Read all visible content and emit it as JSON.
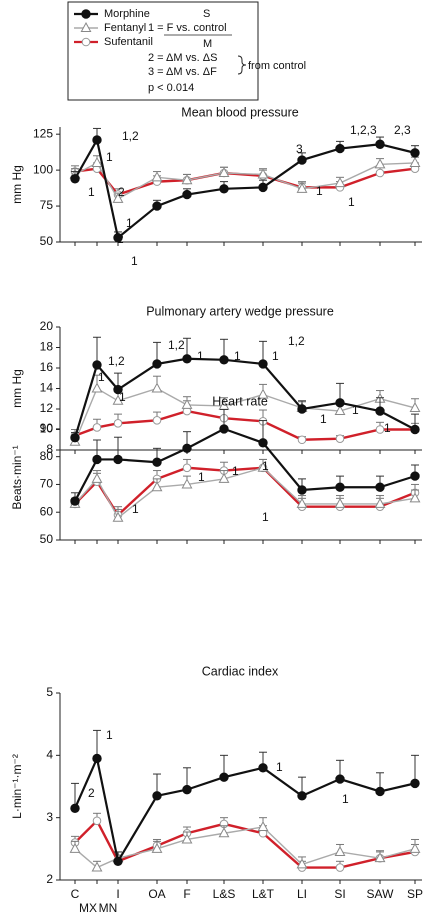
{
  "key": {
    "lines": [
      "S",
      "1 = F vs. control",
      "M",
      "2 = ΔM vs. ΔS",
      "3 = ΔM vs. ΔF",
      "from control",
      "p < 0.014"
    ]
  },
  "chart_data": [
    {
      "type": "line",
      "title": "Mean blood pressure",
      "ylabel": "mm Hg",
      "ylim": [
        50,
        130
      ],
      "yticks": [
        50,
        75,
        100,
        125
      ],
      "series": [
        {
          "name": "Morphine",
          "color": "#111111",
          "marker": "filled-circle",
          "values": [
            94,
            121,
            53,
            75,
            83,
            87,
            88,
            107,
            115,
            118,
            112
          ],
          "errors": [
            5,
            8,
            4,
            4,
            4,
            5,
            5,
            5,
            5,
            5,
            5
          ]
        },
        {
          "name": "Fentanyl",
          "color": "#aaaaaa",
          "marker": "open-triangle",
          "values": [
            97,
            105,
            80,
            95,
            93,
            98,
            97,
            87,
            91,
            104,
            105
          ],
          "errors": [
            4,
            5,
            4,
            4,
            4,
            4,
            4,
            4,
            4,
            4,
            4
          ]
        },
        {
          "name": "Sufentanil",
          "color": "#d0202a",
          "marker": "open-circle",
          "values": [
            99,
            101,
            83,
            92,
            93,
            98,
            96,
            88,
            88,
            98,
            101
          ],
          "errors": [
            4,
            4,
            4,
            4,
            4,
            4,
            4,
            4,
            4,
            4,
            4
          ]
        }
      ],
      "annotations": [
        "1,2",
        "1",
        "1",
        "2",
        "2",
        "1",
        "1",
        "3",
        "1,2,3",
        "2,3",
        "1",
        "1"
      ]
    },
    {
      "type": "line",
      "title": "Pulmonary artery wedge pressure",
      "ylabel": "mm Hg",
      "ylim": [
        8,
        20
      ],
      "yticks": [
        8,
        10,
        12,
        14,
        16,
        18,
        20
      ],
      "series": [
        {
          "name": "Morphine",
          "color": "#111111",
          "marker": "filled-circle",
          "values": [
            9.2,
            16.3,
            13.9,
            16.4,
            16.9,
            16.8,
            16.4,
            12.0,
            12.6,
            11.8,
            10.0
          ],
          "errors": [
            0.5,
            2.7,
            1.6,
            2.1,
            2.0,
            2.0,
            2.2,
            0.8,
            1.9,
            1.3,
            1.5
          ]
        },
        {
          "name": "Fentanyl",
          "color": "#aaaaaa",
          "marker": "open-triangle",
          "values": [
            8.8,
            14.0,
            12.8,
            14.0,
            12.4,
            12.3,
            13.4,
            12.1,
            11.8,
            13.0,
            12.1
          ],
          "errors": [
            0.5,
            1.3,
            1.0,
            1.2,
            0.8,
            0.8,
            1.0,
            0.6,
            0.6,
            0.8,
            0.9
          ]
        },
        {
          "name": "Sufentanil",
          "color": "#d0202a",
          "marker": "open-circle",
          "values": [
            9.4,
            10.2,
            10.6,
            10.9,
            11.8,
            11.1,
            10.8,
            9.0,
            9.1,
            10.0,
            10.0
          ],
          "errors": [
            0.6,
            0.8,
            0.9,
            0.8,
            1.0,
            0.9,
            1.1,
            0.3,
            0.3,
            0.7,
            0.6
          ]
        }
      ],
      "annotations": [
        "1,2",
        "1",
        "1",
        "1,2",
        "1",
        "1",
        "1",
        "1,2",
        "1",
        "1",
        "1"
      ]
    },
    {
      "type": "line",
      "title": "Heart rate",
      "ylabel": "Beats·min⁻¹",
      "ylim": [
        50,
        95
      ],
      "yticks": [
        50,
        60,
        70,
        80,
        90
      ],
      "series": [
        {
          "name": "Morphine",
          "color": "#111111",
          "marker": "filled-circle",
          "values": [
            64,
            79,
            79,
            78,
            83,
            90,
            85,
            68,
            69,
            69,
            73
          ],
          "errors": [
            3,
            7,
            8,
            5,
            6,
            7,
            8,
            4,
            4,
            4,
            4
          ]
        },
        {
          "name": "Fentanyl",
          "color": "#aaaaaa",
          "marker": "open-triangle",
          "values": [
            63,
            72,
            58,
            69,
            70,
            72,
            76,
            63,
            63,
            63,
            65
          ],
          "errors": [
            2,
            3,
            3,
            3,
            3,
            3,
            3,
            3,
            3,
            3,
            3
          ]
        },
        {
          "name": "Sufentanil",
          "color": "#d0202a",
          "marker": "open-circle",
          "values": [
            63,
            71,
            59,
            72,
            76,
            75,
            76,
            62,
            62,
            62,
            67
          ],
          "errors": [
            2,
            3,
            3,
            3,
            3,
            3,
            3,
            3,
            3,
            3,
            3
          ]
        }
      ],
      "annotations": [
        "1",
        "1",
        "1",
        "1",
        "1"
      ]
    },
    {
      "type": "line",
      "title": "Cardiac index",
      "ylabel": "L·min⁻¹·m⁻²",
      "ylim": [
        2,
        5
      ],
      "yticks": [
        2,
        3,
        4,
        5
      ],
      "categories": [
        "C",
        null,
        "I",
        "OA",
        "F",
        "L&S",
        "L&T",
        "LI",
        "SI",
        "SAW",
        "SP"
      ],
      "x_sublabels": [
        "MX",
        "MN"
      ],
      "series": [
        {
          "name": "Morphine",
          "color": "#111111",
          "marker": "filled-circle",
          "values": [
            3.15,
            3.95,
            2.3,
            3.35,
            3.45,
            3.65,
            3.8,
            3.35,
            3.62,
            3.42,
            3.55
          ],
          "errors": [
            0.4,
            0.45,
            0.15,
            0.35,
            0.35,
            0.35,
            0.25,
            0.3,
            0.3,
            0.3,
            0.45
          ]
        },
        {
          "name": "Fentanyl",
          "color": "#aaaaaa",
          "marker": "open-triangle",
          "values": [
            2.5,
            2.2,
            2.35,
            2.5,
            2.65,
            2.75,
            2.85,
            2.25,
            2.45,
            2.35,
            2.5
          ],
          "errors": [
            0.12,
            0.1,
            0.1,
            0.12,
            0.12,
            0.12,
            0.15,
            0.12,
            0.12,
            0.12,
            0.15
          ]
        },
        {
          "name": "Sufentanil",
          "color": "#d0202a",
          "marker": "open-circle",
          "values": [
            2.6,
            2.95,
            2.3,
            2.55,
            2.75,
            2.9,
            2.75,
            2.2,
            2.2,
            2.35,
            2.45
          ],
          "errors": [
            0.1,
            0.12,
            0.1,
            0.1,
            0.1,
            0.1,
            0.12,
            0.1,
            0.1,
            0.1,
            0.12
          ]
        }
      ],
      "annotations": [
        "1",
        "2",
        "1",
        "1"
      ]
    }
  ]
}
